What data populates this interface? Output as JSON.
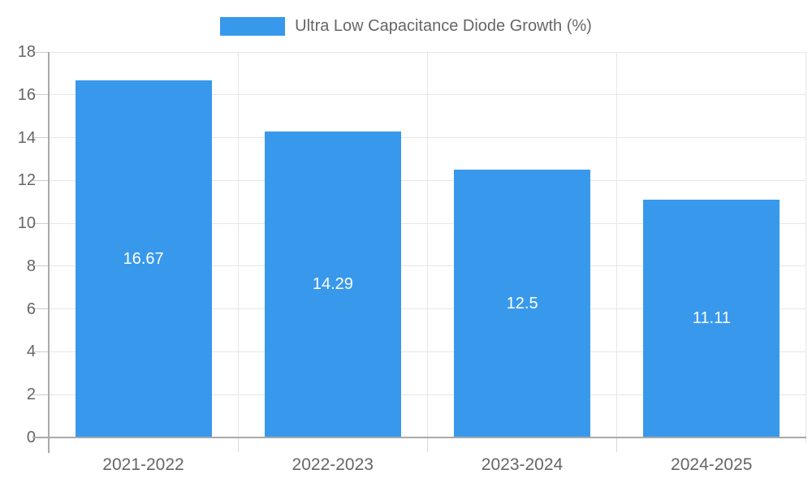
{
  "legend": {
    "label": "Ultra Low Capacitance Diode Growth (%)"
  },
  "chart_data": {
    "type": "bar",
    "title": "Ultra Low Capacitance Diode Growth (%)",
    "categories": [
      "2021-2022",
      "2022-2023",
      "2023-2024",
      "2024-2025"
    ],
    "values": [
      16.67,
      14.29,
      12.5,
      11.11
    ],
    "value_labels": [
      "16.67",
      "14.29",
      "12.5",
      "11.11"
    ],
    "xlabel": "",
    "ylabel": "",
    "ylim": [
      0,
      18
    ],
    "ytick_step": 2,
    "yticks": [
      0,
      2,
      4,
      6,
      8,
      10,
      12,
      14,
      16,
      18
    ],
    "grid": true,
    "legend_position": "top",
    "colors": {
      "bar": "#3899ec",
      "value_label": "#ffffff",
      "axis_text": "#666666",
      "axis_line": "#aaaaaa",
      "gridline": "#e6e6e6",
      "background": "#ffffff"
    }
  }
}
